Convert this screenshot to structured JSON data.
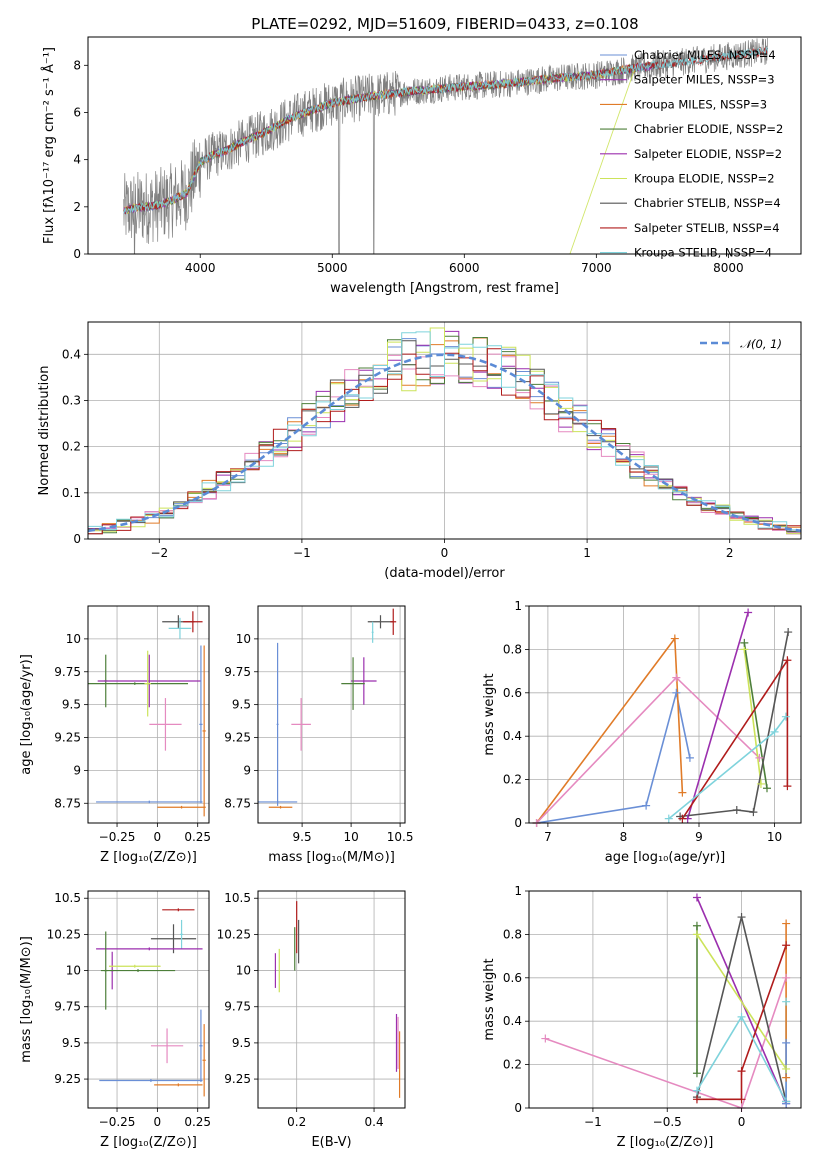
{
  "figure": {
    "title": "PLATE=0292, MJD=51609, FIBERID=0433, z=0.108"
  },
  "chart_data": [
    {
      "id": "spectrum",
      "type": "line",
      "xlabel": "wavelength [Angstrom, rest frame]",
      "ylabel": "Flux [fλ10⁻¹⁷ erg cm⁻² s⁻¹ Å⁻¹]",
      "xlim": [
        3150,
        8550
      ],
      "ylim": [
        0,
        9.2
      ],
      "xticks": [
        4000,
        5000,
        6000,
        7000,
        8000
      ],
      "yticks": [
        0,
        2,
        4,
        6,
        8
      ],
      "grid": false,
      "legend_position": "upper-right",
      "series": [
        {
          "name": "Chabrier MILES, NSSP=4",
          "color": "#6a8fd6"
        },
        {
          "name": "Salpeter MILES, NSSP=3",
          "color": "#9b2fae"
        },
        {
          "name": "Kroupa MILES, NSSP=3",
          "color": "#e07b28"
        },
        {
          "name": "Chabrier ELODIE, NSSP=2",
          "color": "#4d7f3a"
        },
        {
          "name": "Salpeter ELODIE, NSSP=2",
          "color": "#9b2fae"
        },
        {
          "name": "Kroupa ELODIE, NSSP=2",
          "color": "#cce35a"
        },
        {
          "name": "Chabrier STELIB, NSSP=4",
          "color": "#555555"
        },
        {
          "name": "Salpeter STELIB, NSSP=4",
          "color": "#b01c1c"
        },
        {
          "name": "Kroupa STELIB, NSSP=4",
          "color": "#7fd3dc"
        }
      ],
      "continuum": {
        "x": [
          3400,
          3500,
          3600,
          3700,
          3800,
          3900,
          4000,
          4100,
          4200,
          4300,
          4500,
          4700,
          5000,
          5300,
          5600,
          6000,
          6300,
          6600,
          7000,
          7300,
          7600,
          8000,
          8300
        ],
        "y": [
          1.8,
          1.95,
          2.0,
          2.1,
          2.3,
          2.6,
          3.9,
          4.2,
          4.4,
          4.7,
          5.2,
          5.8,
          6.4,
          6.7,
          6.9,
          7.1,
          7.2,
          7.4,
          7.6,
          7.9,
          8.1,
          8.4,
          8.6
        ]
      }
    },
    {
      "id": "residuals",
      "type": "bar",
      "xlabel": "(data-model)/error",
      "ylabel": "Normed distribution",
      "xlim": [
        -2.5,
        2.5
      ],
      "ylim": [
        0,
        0.47
      ],
      "xticks": [
        -2,
        -1,
        0,
        1,
        2
      ],
      "yticks": [
        0.0,
        0.1,
        0.2,
        0.3,
        0.4
      ],
      "grid": true,
      "legend_position": "upper-right",
      "legend": [
        "𝒩(0, 1)"
      ],
      "normal_color": "#5b8bd6",
      "series_colors": [
        "#6a8fd6",
        "#9b2fae",
        "#e07b28",
        "#4d7f3a",
        "#e58ac0",
        "#cce35a",
        "#555555",
        "#b01c1c",
        "#7fd3dc"
      ]
    },
    {
      "id": "age-vs-Z",
      "type": "scatter",
      "xlabel": "Z [log₁₀(Z/Z⊙)]",
      "ylabel": "age  [log₁₀(age/yr)]",
      "xlim": [
        -0.43,
        0.32
      ],
      "ylim": [
        8.6,
        10.25
      ],
      "xticks": [
        -0.25,
        0.0,
        0.25
      ],
      "yticks": [
        8.75,
        9.0,
        9.25,
        9.5,
        9.75,
        10.0
      ],
      "grid": true,
      "points": [
        {
          "x": 0.13,
          "y": 10.13,
          "xerr": 0.1,
          "yerr": 0.05,
          "color": "#555555"
        },
        {
          "x": 0.22,
          "y": 10.13,
          "xerr": 0.06,
          "yerr": 0.08,
          "color": "#b01c1c"
        },
        {
          "x": 0.14,
          "y": 10.08,
          "xerr": 0.07,
          "yerr": 0.08,
          "color": "#7fd3dc"
        },
        {
          "x": -0.32,
          "y": 9.68,
          "xerr": 0.01,
          "yerr": 0.2,
          "color": "#4d7f3a"
        },
        {
          "x": -0.05,
          "y": 9.68,
          "xerr": 0.32,
          "yerr": 0.2,
          "color": "#9b2fae"
        },
        {
          "x": -0.14,
          "y": 9.66,
          "xerr": 0.33,
          "yerr": 0.01,
          "color": "#4d7f3a"
        },
        {
          "x": -0.06,
          "y": 9.66,
          "xerr": 0.02,
          "yerr": 0.25,
          "color": "#cce35a"
        },
        {
          "x": 0.05,
          "y": 9.35,
          "xerr": 0.1,
          "yerr": 0.2,
          "color": "#e58ac0"
        },
        {
          "x": 0.27,
          "y": 9.35,
          "xerr": 0.01,
          "yerr": 0.6,
          "color": "#6a8fd6"
        },
        {
          "x": -0.05,
          "y": 8.76,
          "xerr": 0.33,
          "yerr": 0.01,
          "color": "#6a8fd6"
        },
        {
          "x": 0.15,
          "y": 8.72,
          "xerr": 0.15,
          "yerr": 0.01,
          "color": "#e07b28"
        },
        {
          "x": 0.29,
          "y": 9.3,
          "xerr": 0.01,
          "yerr": 0.65,
          "color": "#e07b28"
        }
      ]
    },
    {
      "id": "age-vs-mass",
      "type": "scatter",
      "xlabel": "mass [log₁₀(M/M⊙)]",
      "ylabel": "",
      "xlim": [
        9.05,
        10.55
      ],
      "ylim": [
        8.6,
        10.25
      ],
      "xticks": [
        9.5,
        10.0,
        10.5
      ],
      "yticks": [
        8.75,
        9.0,
        9.25,
        9.5,
        9.75,
        10.0
      ],
      "grid": true,
      "points": [
        {
          "x": 10.3,
          "y": 10.13,
          "xerr": 0.13,
          "yerr": 0.05,
          "color": "#555555"
        },
        {
          "x": 10.43,
          "y": 10.13,
          "xerr": 0.03,
          "yerr": 0.1,
          "color": "#b01c1c"
        },
        {
          "x": 10.22,
          "y": 10.05,
          "xerr": 0.01,
          "yerr": 0.08,
          "color": "#7fd3dc"
        },
        {
          "x": 10.13,
          "y": 9.68,
          "xerr": 0.13,
          "yerr": 0.18,
          "color": "#9b2fae"
        },
        {
          "x": 10.02,
          "y": 9.66,
          "xerr": 0.12,
          "yerr": 0.2,
          "color": "#4d7f3a"
        },
        {
          "x": 9.49,
          "y": 9.35,
          "xerr": 0.1,
          "yerr": 0.2,
          "color": "#e58ac0"
        },
        {
          "x": 9.25,
          "y": 9.35,
          "xerr": 0.01,
          "yerr": 0.62,
          "color": "#6a8fd6"
        },
        {
          "x": 9.25,
          "y": 8.76,
          "xerr": 0.2,
          "yerr": 0.01,
          "color": "#6a8fd6"
        },
        {
          "x": 9.28,
          "y": 8.72,
          "xerr": 0.12,
          "yerr": 0.01,
          "color": "#e07b28"
        }
      ]
    },
    {
      "id": "weight-vs-age",
      "type": "line",
      "xlabel": "age  [log₁₀(age/yr)]",
      "ylabel": "mass weight",
      "xlim": [
        6.75,
        10.35
      ],
      "ylim": [
        0,
        1.0
      ],
      "xticks": [
        7,
        8,
        9,
        10
      ],
      "yticks": [
        0.0,
        0.2,
        0.4,
        0.6,
        0.8,
        1.0
      ],
      "grid": true,
      "series": [
        {
          "color": "#6a8fd6",
          "x": [
            6.85,
            8.3,
            8.7,
            8.88
          ],
          "y": [
            0.0,
            0.08,
            0.6,
            0.3
          ]
        },
        {
          "color": "#e07b28",
          "x": [
            6.85,
            8.68,
            8.78
          ],
          "y": [
            0.0,
            0.85,
            0.14
          ]
        },
        {
          "color": "#e58ac0",
          "x": [
            6.85,
            8.7,
            9.8
          ],
          "y": [
            0.0,
            0.67,
            0.3
          ]
        },
        {
          "color": "#9b2fae",
          "x": [
            8.85,
            9.65
          ],
          "y": [
            0.02,
            0.97
          ]
        },
        {
          "color": "#cce35a",
          "x": [
            9.6,
            9.82
          ],
          "y": [
            0.8,
            0.18
          ]
        },
        {
          "color": "#4d7f3a",
          "x": [
            9.6,
            9.9
          ],
          "y": [
            0.83,
            0.16
          ]
        },
        {
          "color": "#555555",
          "x": [
            8.75,
            9.5,
            9.72,
            10.18
          ],
          "y": [
            0.03,
            0.06,
            0.05,
            0.88
          ]
        },
        {
          "color": "#b01c1c",
          "x": [
            8.78,
            10.17,
            10.17
          ],
          "y": [
            0.02,
            0.75,
            0.17
          ]
        },
        {
          "color": "#7fd3dc",
          "x": [
            8.6,
            10.0,
            10.15
          ],
          "y": [
            0.02,
            0.42,
            0.49
          ]
        }
      ]
    },
    {
      "id": "mass-vs-Z",
      "type": "scatter",
      "xlabel": "Z [log₁₀(Z/Z⊙)]",
      "ylabel": "mass [log₁₀(M/M⊙)]",
      "xlim": [
        -0.43,
        0.32
      ],
      "ylim": [
        9.05,
        10.55
      ],
      "xticks": [
        -0.25,
        0.0,
        0.25
      ],
      "yticks": [
        9.25,
        9.5,
        9.75,
        10.0,
        10.25,
        10.5
      ],
      "grid": true,
      "points": [
        {
          "x": 0.13,
          "y": 10.42,
          "xerr": 0.1,
          "yerr": 0.01,
          "color": "#b01c1c"
        },
        {
          "x": 0.1,
          "y": 10.22,
          "xerr": 0.14,
          "yerr": 0.1,
          "color": "#555555"
        },
        {
          "x": 0.15,
          "y": 10.25,
          "xerr": 0.01,
          "yerr": 0.1,
          "color": "#7fd3dc"
        },
        {
          "x": -0.05,
          "y": 10.15,
          "xerr": 0.33,
          "yerr": 0.01,
          "color": "#9b2fae"
        },
        {
          "x": -0.28,
          "y": 10.0,
          "xerr": 0.01,
          "yerr": 0.13,
          "color": "#9b2fae"
        },
        {
          "x": -0.32,
          "y": 10.0,
          "xerr": 0.01,
          "yerr": 0.27,
          "color": "#4d7f3a"
        },
        {
          "x": -0.12,
          "y": 10.0,
          "xerr": 0.23,
          "yerr": 0.01,
          "color": "#4d7f3a"
        },
        {
          "x": -0.14,
          "y": 10.03,
          "xerr": 0.16,
          "yerr": 0.01,
          "color": "#cce35a"
        },
        {
          "x": 0.06,
          "y": 9.48,
          "xerr": 0.1,
          "yerr": 0.12,
          "color": "#e58ac0"
        },
        {
          "x": 0.27,
          "y": 9.48,
          "xerr": 0.01,
          "yerr": 0.25,
          "color": "#6a8fd6"
        },
        {
          "x": -0.04,
          "y": 9.24,
          "xerr": 0.32,
          "yerr": 0.01,
          "color": "#6a8fd6"
        },
        {
          "x": 0.13,
          "y": 9.21,
          "xerr": 0.15,
          "yerr": 0.01,
          "color": "#e07b28"
        },
        {
          "x": 0.29,
          "y": 9.38,
          "xerr": 0.01,
          "yerr": 0.25,
          "color": "#e07b28"
        }
      ]
    },
    {
      "id": "mass-vs-EBV",
      "type": "scatter",
      "xlabel": "E(B-V)",
      "ylabel": "",
      "xlim": [
        0.1,
        0.48
      ],
      "ylim": [
        9.05,
        10.55
      ],
      "xticks": [
        0.2,
        0.4
      ],
      "yticks": [
        9.25,
        9.5,
        9.75,
        10.0,
        10.25,
        10.5
      ],
      "grid": true,
      "points": [
        {
          "x": 0.2,
          "y": 10.3,
          "xerr": 0.0,
          "yerr": 0.18,
          "color": "#b01c1c"
        },
        {
          "x": 0.205,
          "y": 10.2,
          "xerr": 0.0,
          "yerr": 0.15,
          "color": "#555555"
        },
        {
          "x": 0.195,
          "y": 10.15,
          "xerr": 0.0,
          "yerr": 0.15,
          "color": "#4d7f3a"
        },
        {
          "x": 0.155,
          "y": 10.0,
          "xerr": 0.0,
          "yerr": 0.15,
          "color": "#cce35a"
        },
        {
          "x": 0.145,
          "y": 10.0,
          "xerr": 0.0,
          "yerr": 0.12,
          "color": "#9b2fae"
        },
        {
          "x": 0.458,
          "y": 9.5,
          "xerr": 0.0,
          "yerr": 0.2,
          "color": "#9b2fae"
        },
        {
          "x": 0.462,
          "y": 9.5,
          "xerr": 0.0,
          "yerr": 0.18,
          "color": "#e58ac0"
        },
        {
          "x": 0.466,
          "y": 9.35,
          "xerr": 0.0,
          "yerr": 0.23,
          "color": "#e07b28"
        }
      ]
    },
    {
      "id": "weight-vs-Z",
      "type": "line",
      "xlabel": "Z [log₁₀(Z/Z⊙)]",
      "ylabel": "mass weight",
      "xlim": [
        -1.43,
        0.4
      ],
      "ylim": [
        0,
        1.0
      ],
      "xticks": [
        -1.0,
        -0.5,
        0.0
      ],
      "yticks": [
        0.0,
        0.2,
        0.4,
        0.6,
        0.8,
        1.0
      ],
      "grid": true,
      "series": [
        {
          "color": "#e58ac0",
          "x": [
            -1.32,
            0.0,
            0.3
          ],
          "y": [
            0.32,
            0.0,
            0.6
          ]
        },
        {
          "color": "#9b2fae",
          "x": [
            -0.3,
            0.3
          ],
          "y": [
            0.97,
            0.02
          ]
        },
        {
          "color": "#4d7f3a",
          "x": [
            -0.3,
            -0.3
          ],
          "y": [
            0.84,
            0.16
          ]
        },
        {
          "color": "#cce35a",
          "x": [
            -0.3,
            0.3
          ],
          "y": [
            0.8,
            0.18
          ]
        },
        {
          "color": "#555555",
          "x": [
            -0.3,
            0.0,
            0.3
          ],
          "y": [
            0.05,
            0.88,
            0.03
          ]
        },
        {
          "color": "#b01c1c",
          "x": [
            -0.3,
            0.0,
            0.0,
            0.3
          ],
          "y": [
            0.04,
            0.04,
            0.17,
            0.75
          ]
        },
        {
          "color": "#7fd3dc",
          "x": [
            -0.3,
            0.0,
            0.3,
            0.3
          ],
          "y": [
            0.08,
            0.42,
            0.03,
            0.49
          ]
        },
        {
          "color": "#e07b28",
          "x": [
            0.3,
            0.3
          ],
          "y": [
            0.85,
            0.14
          ]
        },
        {
          "color": "#6a8fd6",
          "x": [
            0.3,
            0.3
          ],
          "y": [
            0.3,
            0.02
          ]
        }
      ]
    }
  ]
}
